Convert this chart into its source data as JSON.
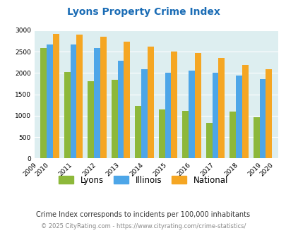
{
  "title": "Lyons Property Crime Index",
  "years": [
    2009,
    2010,
    2011,
    2012,
    2013,
    2014,
    2015,
    2016,
    2017,
    2018,
    2019,
    2020
  ],
  "lyons": [
    null,
    2580,
    2020,
    1800,
    1840,
    1230,
    1140,
    1120,
    840,
    1090,
    960,
    null
  ],
  "illinois": [
    null,
    2660,
    2660,
    2580,
    2280,
    2090,
    2000,
    2050,
    2010,
    1940,
    1850,
    null
  ],
  "national": [
    null,
    2920,
    2900,
    2850,
    2740,
    2610,
    2500,
    2470,
    2360,
    2190,
    2090,
    null
  ],
  "lyons_color": "#8db83a",
  "illinois_color": "#4da6e8",
  "national_color": "#f5a623",
  "bg_color": "#ddeef0",
  "title_color": "#1a6cb5",
  "subtitle_color": "#333333",
  "footer_color": "#888888",
  "subtitle": "Crime Index corresponds to incidents per 100,000 inhabitants",
  "footer": "© 2025 CityRating.com - https://www.cityrating.com/crime-statistics/",
  "ylim": [
    0,
    3000
  ],
  "yticks": [
    0,
    500,
    1000,
    1500,
    2000,
    2500,
    3000
  ]
}
